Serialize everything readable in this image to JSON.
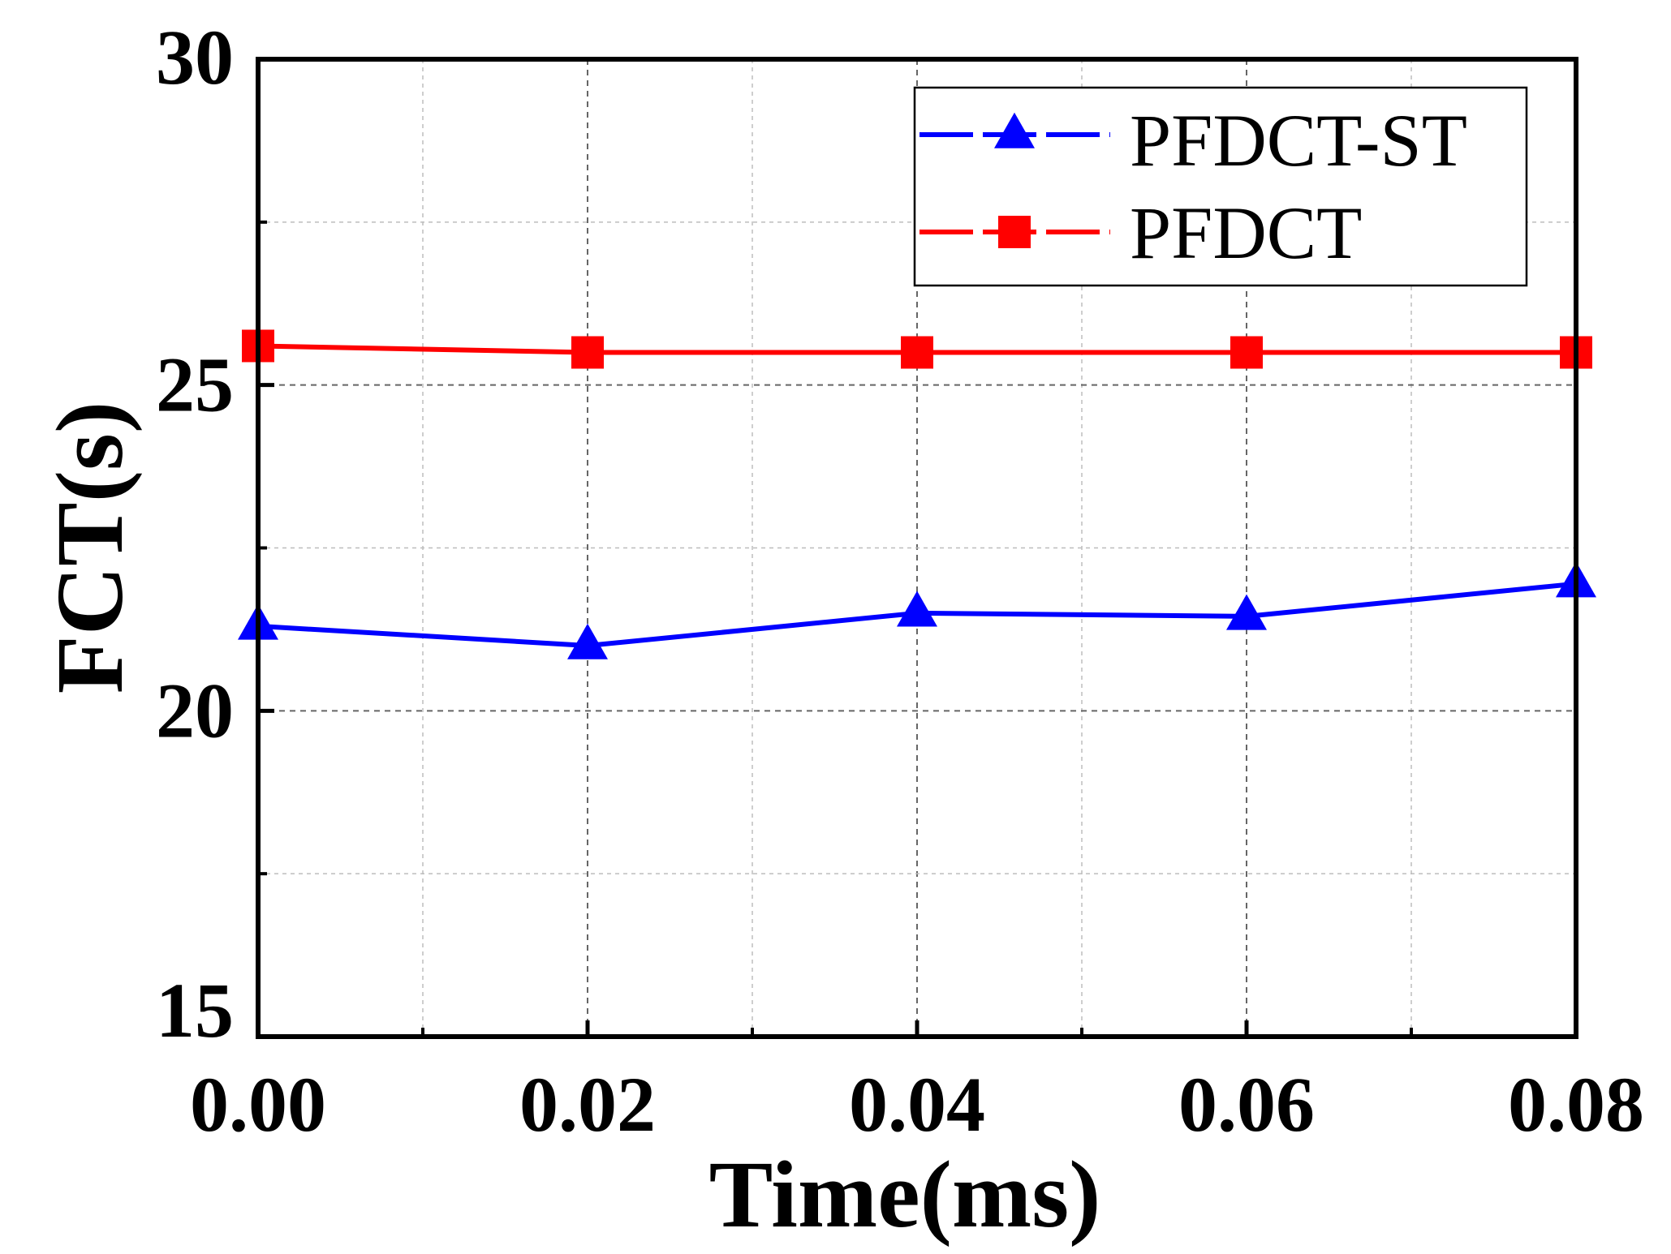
{
  "chart_data": {
    "type": "line",
    "title": "",
    "xlabel": "Time(ms)",
    "ylabel": "FCT(s)",
    "xlim": [
      0,
      0.08
    ],
    "ylim": [
      15,
      30
    ],
    "x": [
      0,
      0.02,
      0.04,
      0.06,
      0.08
    ],
    "x_tick_labels": [
      "0.00",
      "0.02",
      "0.04",
      "0.06",
      "0.08"
    ],
    "y_ticks": [
      15,
      20,
      25,
      30
    ],
    "y_tick_labels": [
      "15",
      "20",
      "25",
      "30"
    ],
    "grid": true,
    "legend_position": "top-right",
    "series": [
      {
        "name": "PFDCT-ST",
        "values": [
          21.3,
          21.0,
          21.5,
          21.45,
          21.95
        ],
        "color": "#0000ff",
        "marker": "triangle"
      },
      {
        "name": "PFDCT",
        "values": [
          25.6,
          25.5,
          25.5,
          25.5,
          25.5
        ],
        "color": "#ff0000",
        "marker": "square"
      }
    ]
  }
}
